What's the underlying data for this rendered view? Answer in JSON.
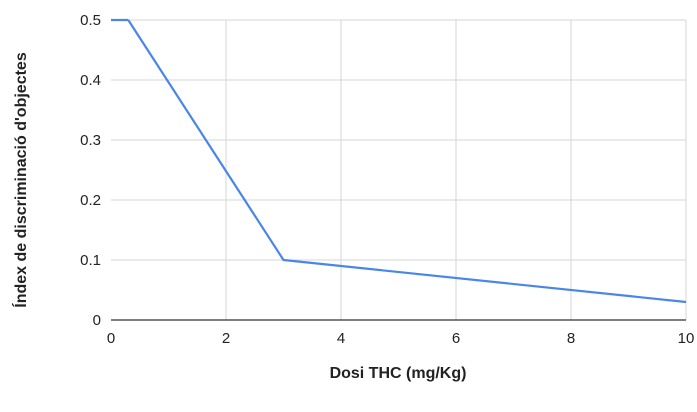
{
  "chart_data": {
    "type": "line",
    "title": "",
    "xlabel": "Dosi THC (mg/Kg)",
    "ylabel": "Índex de discriminació d'objectes",
    "xlim": [
      0,
      10
    ],
    "ylim": [
      0,
      0.5
    ],
    "x_ticks": [
      0,
      2,
      4,
      6,
      8,
      10
    ],
    "y_ticks": [
      0,
      0.1,
      0.2,
      0.3,
      0.4,
      0.5
    ],
    "x_tick_labels": [
      "0",
      "2",
      "4",
      "6",
      "8",
      "10"
    ],
    "y_tick_labels": [
      "0",
      "0.1",
      "0.2",
      "0.3",
      "0.4",
      "0.5"
    ],
    "grid": true,
    "legend": "none",
    "series": [
      {
        "color": "#4a86e8",
        "x": [
          0.3,
          3,
          10
        ],
        "y": [
          0.5,
          0.1,
          0.03
        ]
      }
    ]
  }
}
